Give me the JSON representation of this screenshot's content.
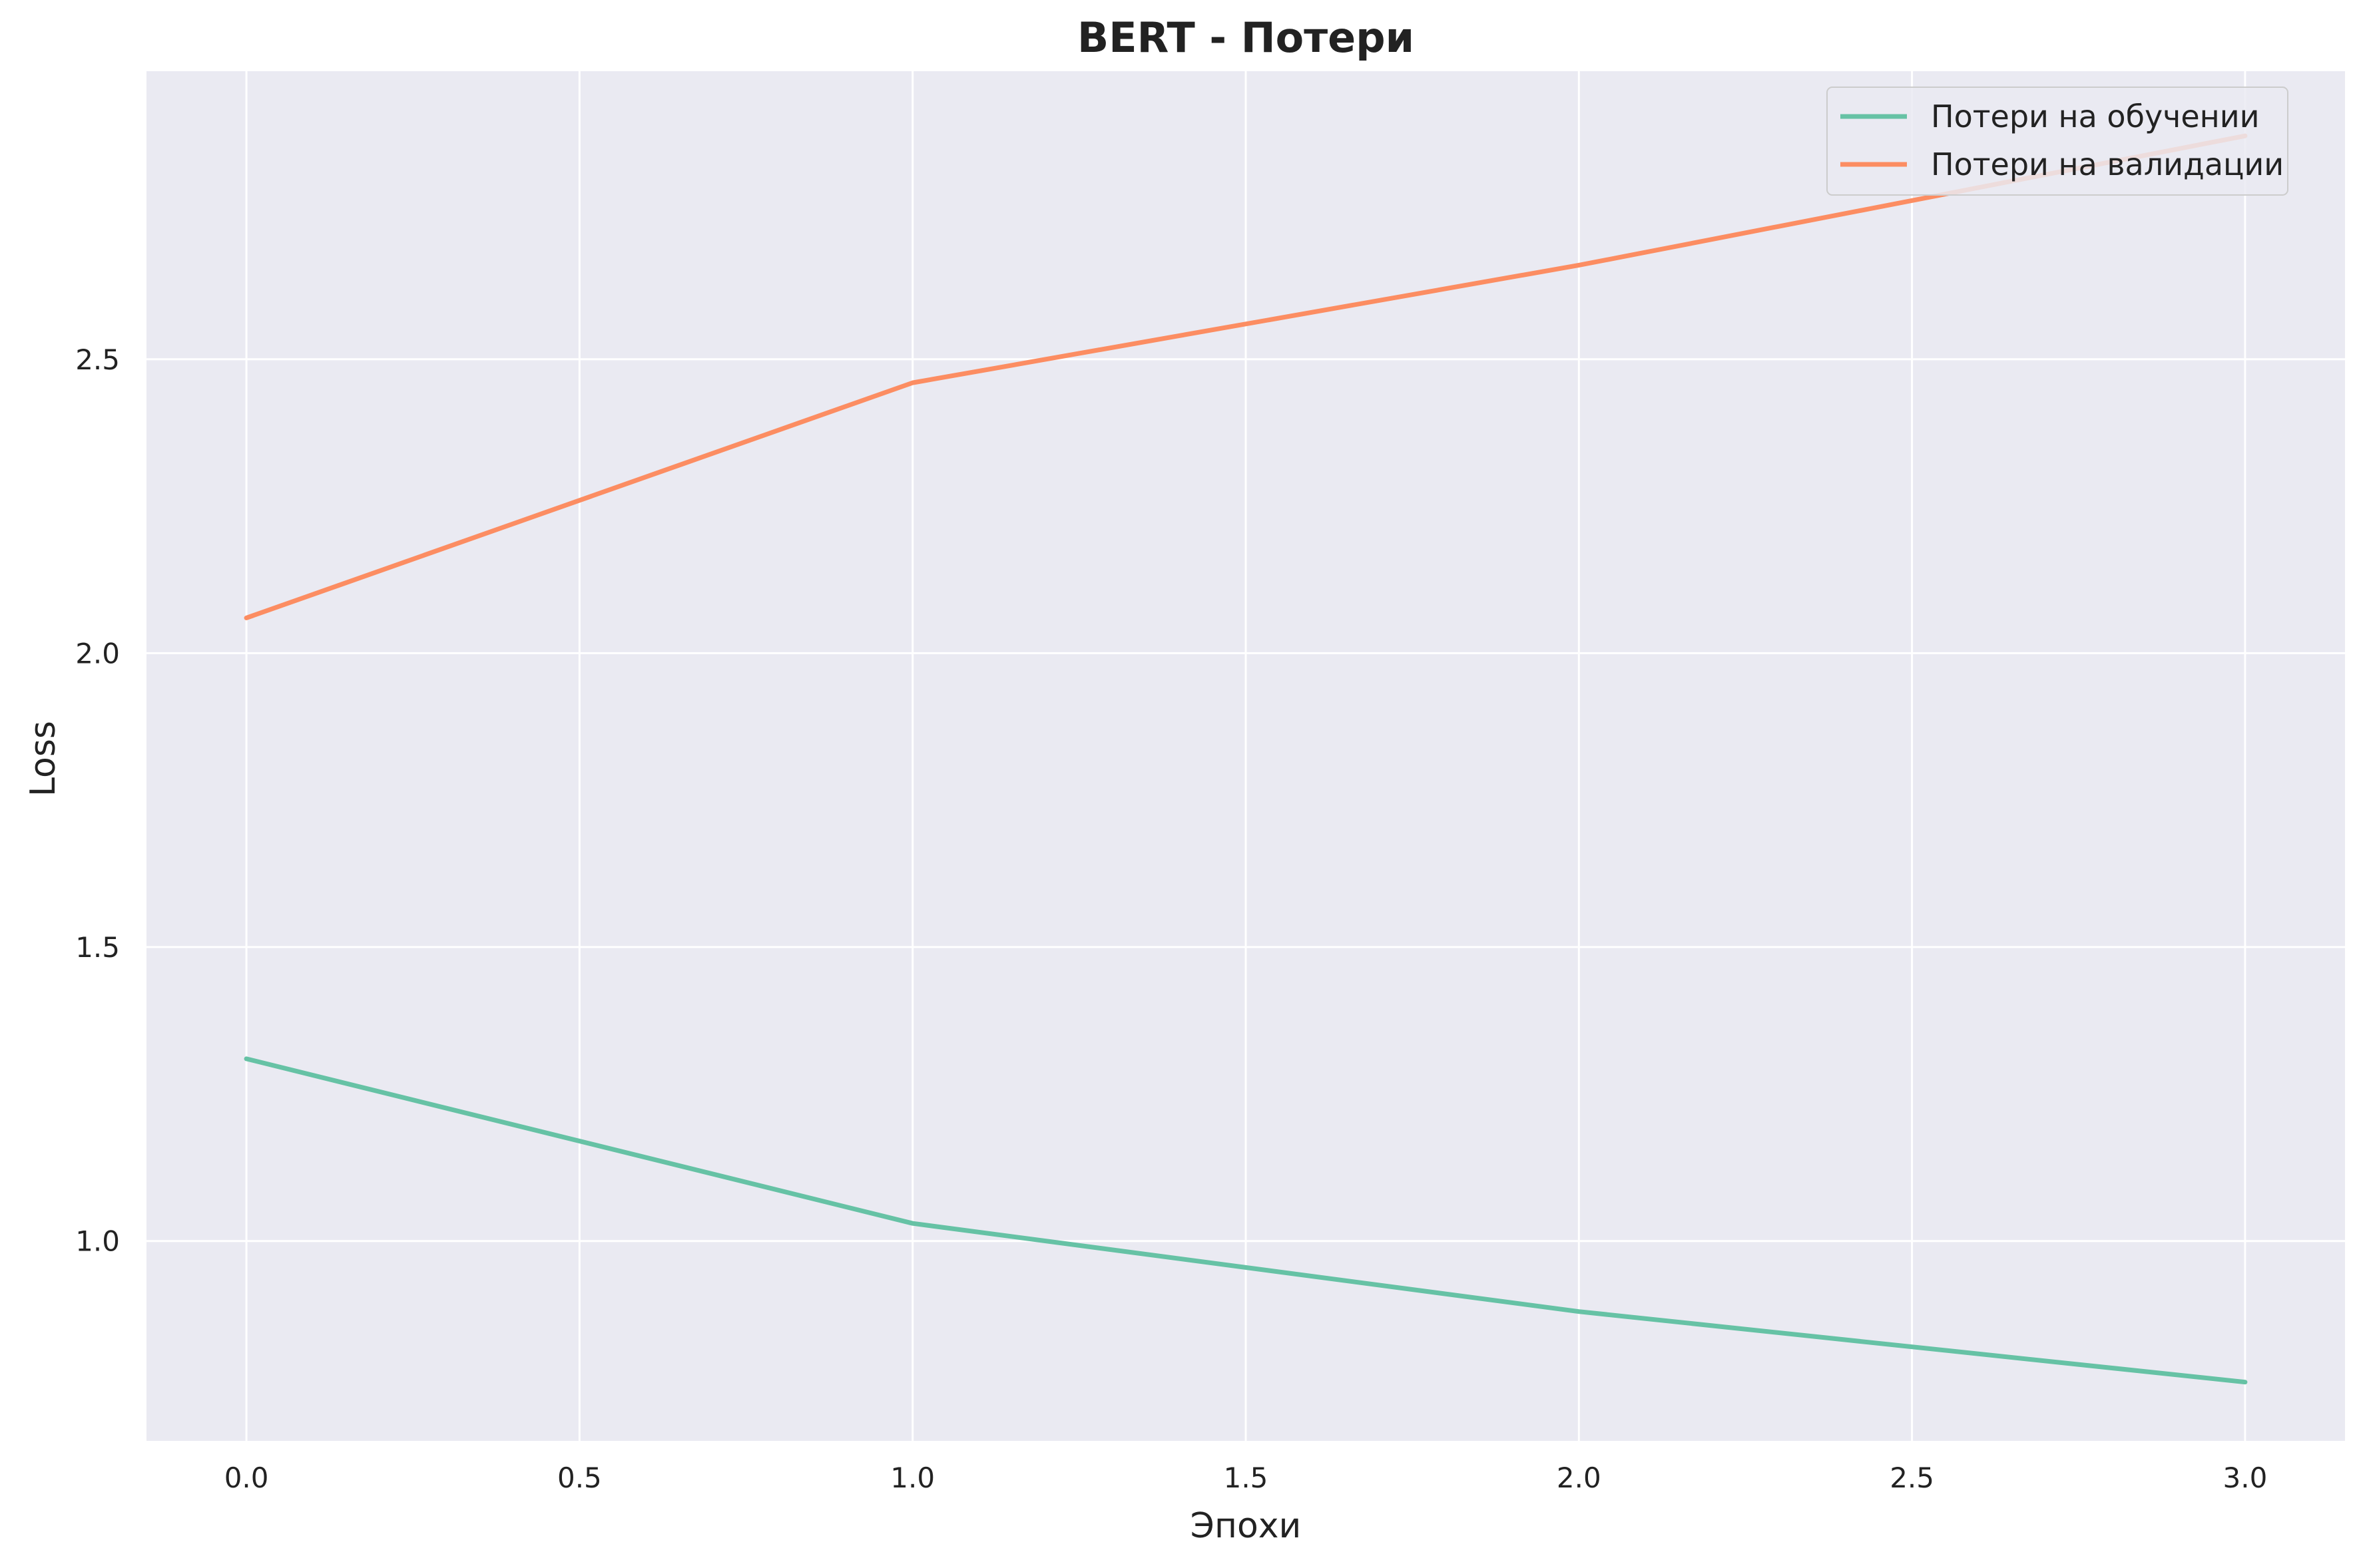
{
  "chart_data": {
    "type": "line",
    "title": "BERT - Потери",
    "xlabel": "Эпохи",
    "ylabel": "Loss",
    "x": [
      0,
      1,
      2,
      3
    ],
    "xlim": [
      -0.15,
      3.15
    ],
    "ylim": [
      0.66,
      2.99
    ],
    "xticks": [
      0.0,
      0.5,
      1.0,
      1.5,
      2.0,
      2.5,
      3.0
    ],
    "xtick_labels": [
      "0.0",
      "0.5",
      "1.0",
      "1.5",
      "2.0",
      "2.5",
      "3.0"
    ],
    "yticks": [
      1.0,
      1.5,
      2.0,
      2.5
    ],
    "ytick_labels": [
      "1.0",
      "1.5",
      "2.0",
      "2.5"
    ],
    "grid": true,
    "legend_position": "top-right",
    "series": [
      {
        "name": "Потери на обучении",
        "values": [
          1.31,
          1.03,
          0.88,
          0.76
        ],
        "color": "#66c2a5"
      },
      {
        "name": "Потери на валидации",
        "values": [
          2.06,
          2.46,
          2.66,
          2.88
        ],
        "color": "#fc8d62"
      }
    ],
    "colors": {
      "plot_background": "#eaeaf2",
      "grid": "#ffffff"
    }
  }
}
